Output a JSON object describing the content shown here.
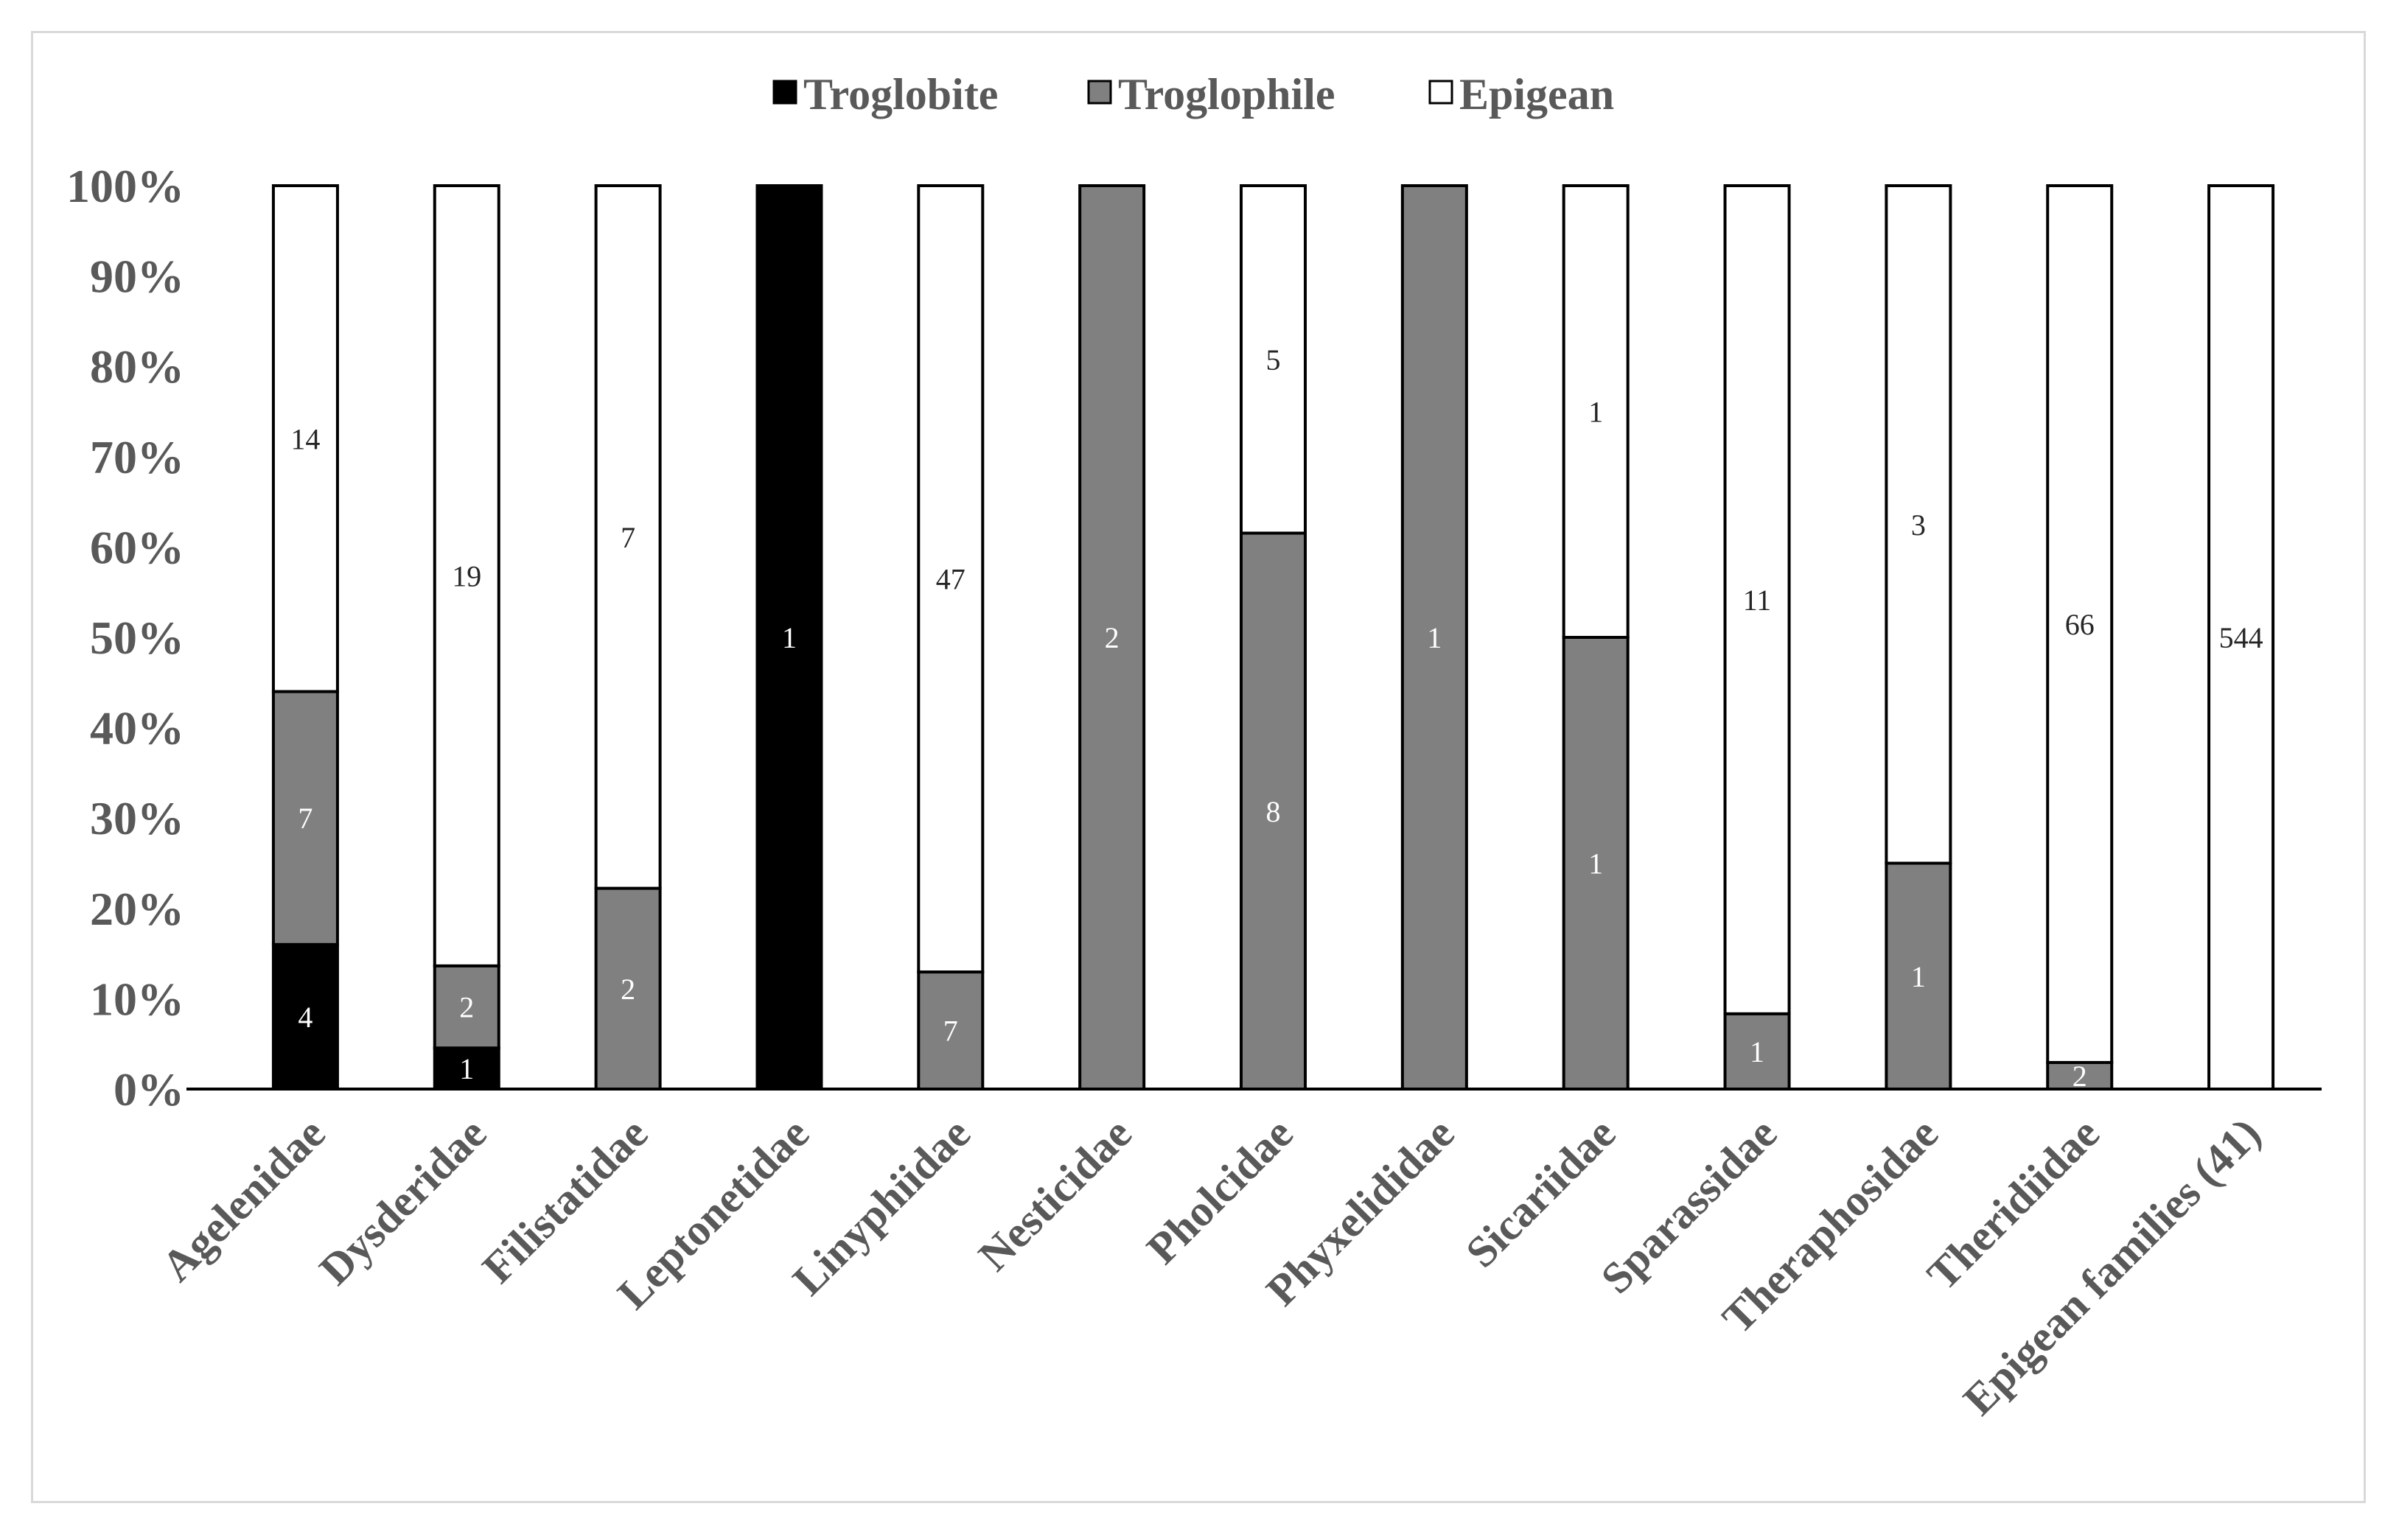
{
  "chart_data": {
    "type": "bar",
    "stacked": "percent",
    "title": "",
    "xlabel": "",
    "ylabel": "",
    "ylim": [
      0,
      100
    ],
    "yticks": [
      "0%",
      "10%",
      "20%",
      "30%",
      "40%",
      "50%",
      "60%",
      "70%",
      "80%",
      "90%",
      "100%"
    ],
    "legend_position": "top-center",
    "categories": [
      "Agelenidae",
      "Dysderidae",
      "Filistatidae",
      "Leptonetidae",
      "Linyphiidae",
      "Nesticidae",
      "Pholcidae",
      "Phyxelididae",
      "Sicariidae",
      "Sparassidae",
      "Theraphosidae",
      "Theridiidae",
      "Epigean families (41)"
    ],
    "series": [
      {
        "name": "Troglobite",
        "color": "#000000",
        "label_color": "#ffffff",
        "values": [
          4,
          1,
          0,
          1,
          0,
          0,
          0,
          0,
          0,
          0,
          0,
          0,
          0
        ]
      },
      {
        "name": "Troglophile",
        "color": "#808080",
        "label_color": "#ffffff",
        "values": [
          7,
          2,
          2,
          0,
          7,
          2,
          8,
          1,
          1,
          1,
          1,
          2,
          0
        ]
      },
      {
        "name": "Epigean",
        "color": "#ffffff",
        "label_color": "#262626",
        "values": [
          14,
          19,
          7,
          0,
          47,
          0,
          5,
          0,
          1,
          11,
          3,
          66,
          544
        ]
      }
    ]
  }
}
